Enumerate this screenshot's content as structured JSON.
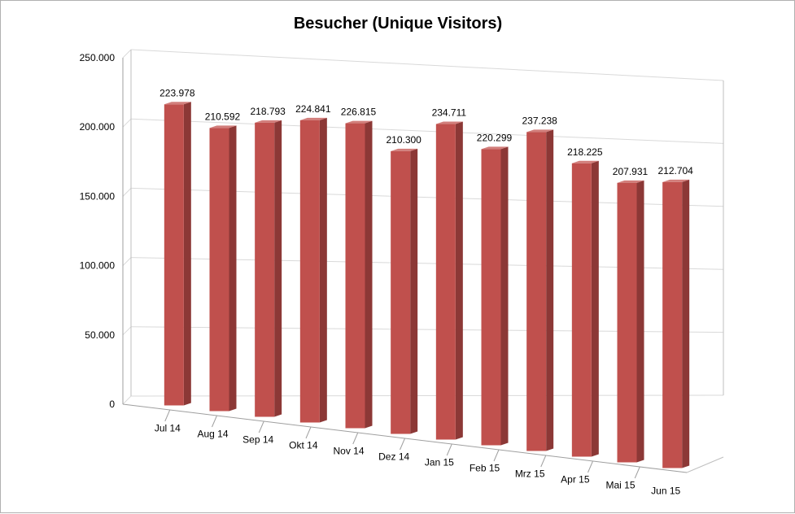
{
  "chart_data": {
    "type": "bar",
    "title": "Besucher (Unique Visitors)",
    "xlabel": "",
    "ylabel": "",
    "ylim": [
      0,
      250000
    ],
    "y_ticks": [
      "0",
      "50.000",
      "100.000",
      "150.000",
      "200.000",
      "250.000"
    ],
    "categories": [
      "Jul 14",
      "Aug 14",
      "Sep 14",
      "Okt 14",
      "Nov 14",
      "Dez 14",
      "Jan 15",
      "Feb 15",
      "Mrz 15",
      "Apr 15",
      "Mai 15",
      "Jun 15"
    ],
    "values": [
      223978,
      210592,
      218793,
      224841,
      226815,
      210300,
      234711,
      220299,
      237238,
      218225,
      207931,
      212704
    ],
    "data_labels": [
      "223.978",
      "210.592",
      "218.793",
      "224.841",
      "226.815",
      "210.300",
      "234.711",
      "220.299",
      "237.238",
      "218.225",
      "207.931",
      "212.704"
    ],
    "grid": true,
    "legend": "none",
    "style": "3d-column",
    "colors": {
      "bar_front": "#c0504d",
      "bar_side": "#8c3836",
      "bar_top": "#d27e7b",
      "gridline": "#d9d9d9"
    }
  }
}
